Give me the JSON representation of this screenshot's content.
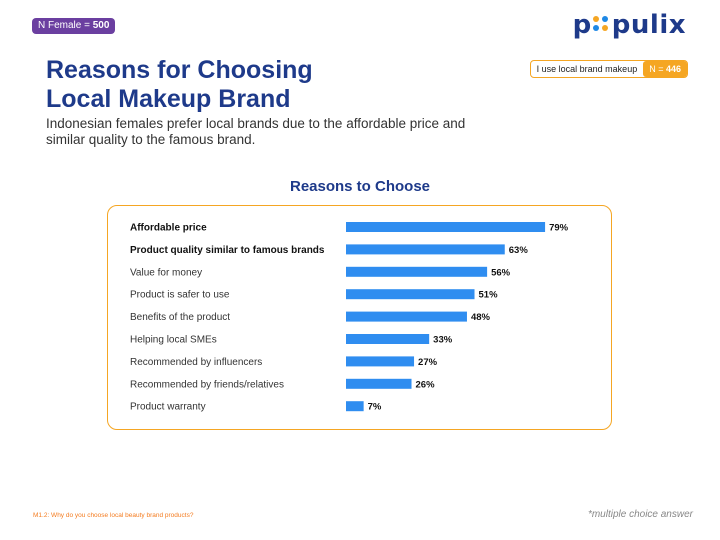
{
  "header": {
    "n_label": "N Female = ",
    "n_value": "500",
    "logo_text_left": "p",
    "logo_text_right": "pulix"
  },
  "title": {
    "line1": "Reasons for Choosing",
    "line2": "Local Makeup Brand"
  },
  "subtitle": "Indonesian females prefer local brands due to the affordable price and similar quality to the famous brand.",
  "sample_badge": {
    "label": "I use local brand makeup",
    "n_label": "N = ",
    "n_value": "446"
  },
  "chart_data": {
    "type": "bar",
    "orientation": "horizontal",
    "title": "Reasons to Choose",
    "categories": [
      "Affordable price",
      "Product quality similar to famous brands",
      "Value for money",
      "Product is safer to use",
      "Benefits of the product",
      "Helping local SMEs",
      "Recommended by influencers",
      "Recommended by friends/relatives",
      "Product warranty"
    ],
    "values": [
      79,
      63,
      56,
      51,
      48,
      33,
      27,
      26,
      7
    ],
    "value_suffix": "%",
    "bold_categories": [
      "Affordable price",
      "Product quality similar to famous brands"
    ],
    "bar_color": "#2f8df0",
    "xlim": [
      0,
      100
    ],
    "xlabel": "",
    "ylabel": ""
  },
  "footnote": "M1.2: Why do you choose local beauty brand products?",
  "note": "*multiple choice answer",
  "colors": {
    "primary": "#1e3a8a",
    "accent": "#f5a623",
    "badge": "#6b3fa0"
  }
}
